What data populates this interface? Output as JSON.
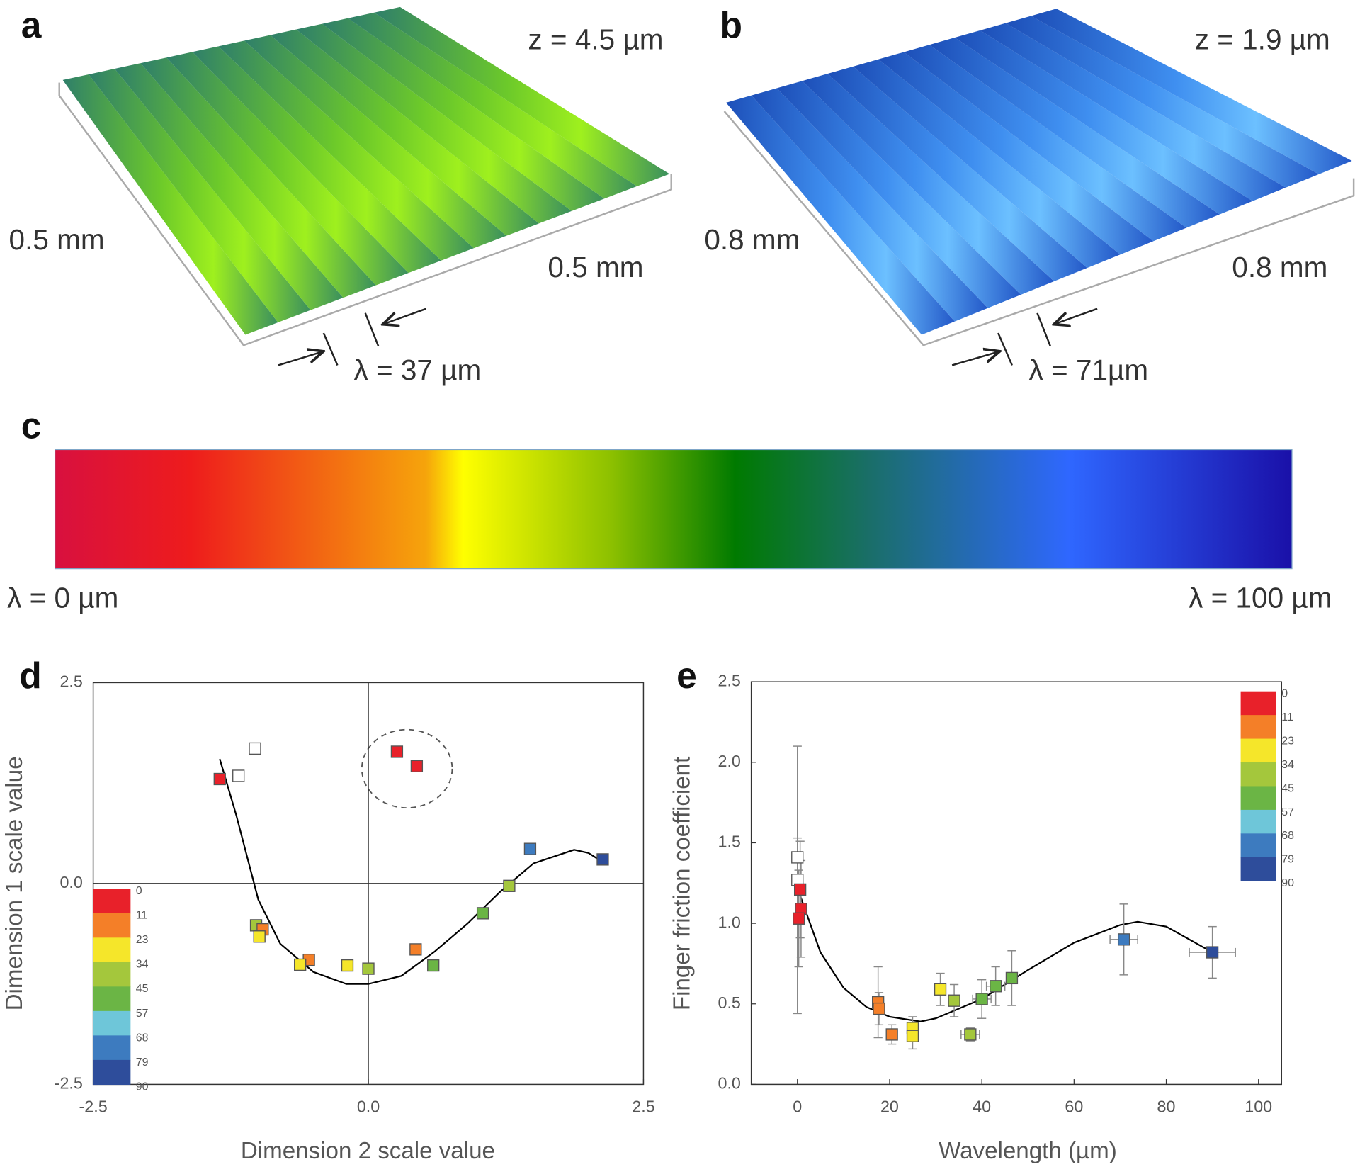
{
  "panels": {
    "a": {
      "label": "a",
      "z": "z = 4.5 µm",
      "width": "0.5 mm",
      "length": "0.5 mm",
      "wavelength": "λ = 37 µm"
    },
    "b": {
      "label": "b",
      "z": "z = 1.9 µm",
      "width": "0.8 mm",
      "length": "0.8 mm",
      "wavelength": "λ =  71µm"
    },
    "c": {
      "label": "c",
      "min": "λ = 0 µm",
      "max": "λ = 100 µm"
    }
  },
  "chart_data": [
    {
      "type": "scatter",
      "panel_label": "d",
      "xlabel": "Dimension 2 scale value",
      "ylabel": "Dimension 1 scale value",
      "xlim": [
        -2.5,
        2.5
      ],
      "ylim": [
        -2.5,
        2.5
      ],
      "xticks": [
        -2.5,
        {
          "value": 0,
          "label": "0.0"
        },
        2.5
      ],
      "yticks": [
        -2.5,
        {
          "value": 0,
          "label": "0.0"
        },
        2.5
      ],
      "zero_lines": true,
      "points": {
        "x": [
          -1.35,
          -1.18,
          -1.03,
          0.26,
          0.44,
          1.47,
          2.13,
          1.28,
          1.04,
          0.43,
          0.59,
          0.0,
          -0.19,
          -0.54,
          -0.62,
          -1.02,
          -0.96,
          -0.99
        ],
        "y": [
          1.3,
          1.34,
          1.68,
          1.64,
          1.46,
          0.43,
          0.3,
          -0.03,
          -0.37,
          -0.82,
          -1.02,
          -1.06,
          -1.02,
          -0.95,
          -1.01,
          -0.52,
          -0.57,
          -0.66
        ],
        "colors": [
          "#e8212a",
          "#ffffff",
          "#ffffff",
          "#e8212a",
          "#e8212a",
          "#3d7bbf",
          "#2e4d9b",
          "#a4c73c",
          "#6bb545",
          "#f47f28",
          "#6bb545",
          "#a4c73c",
          "#f5e62a",
          "#f47f28",
          "#f5e62a",
          "#a4c73c",
          "#f47f28",
          "#f5e62a"
        ]
      },
      "fit": {
        "color": "#000000",
        "x": [
          -1.35,
          -1.2,
          -1.0,
          -0.8,
          -0.5,
          -0.2,
          0.0,
          0.3,
          0.6,
          0.9,
          1.2,
          1.5,
          1.87,
          2.0,
          2.15
        ],
        "y": [
          1.55,
          0.85,
          -0.2,
          -0.75,
          -1.1,
          -1.25,
          -1.25,
          -1.15,
          -0.85,
          -0.5,
          -0.1,
          0.25,
          0.42,
          0.38,
          0.25
        ]
      },
      "colorbar": {
        "labels": [
          0,
          11,
          23,
          34,
          45,
          57,
          68,
          79,
          90
        ],
        "colors": [
          "#e8212a",
          "#f47f28",
          "#f5e62a",
          "#a4c73c",
          "#6bb545",
          "#6ec6d9",
          "#3d7bbf",
          "#2e4d9b"
        ]
      }
    },
    {
      "type": "scatter",
      "panel_label": "e",
      "xlabel": "Wavelength (µm)",
      "ylabel": "Finger friction coefficient",
      "xlim": [
        -10,
        105
      ],
      "ylim": [
        0,
        2.5
      ],
      "xticks": [
        0,
        20,
        40,
        60,
        80,
        100
      ],
      "yticks": [
        {
          "value": 0,
          "label": "0.0"
        },
        0.5,
        {
          "value": 1,
          "label": "1.0"
        },
        1.5,
        {
          "value": 2,
          "label": "2.0"
        },
        2.5
      ],
      "zero_lines": false,
      "points": {
        "x": [
          0,
          0,
          0.6,
          0.8,
          0.3,
          17.5,
          17.7,
          20.5,
          25,
          25,
          31,
          34,
          37.5,
          40,
          43,
          46.5,
          70.8,
          90
        ],
        "y": [
          1.41,
          1.27,
          1.21,
          1.09,
          1.03,
          0.51,
          0.47,
          0.31,
          0.35,
          0.3,
          0.59,
          0.52,
          0.31,
          0.53,
          0.61,
          0.66,
          0.9,
          0.82
        ],
        "yerr": [
          0.12,
          0.83,
          0.3,
          0.3,
          0.3,
          0.22,
          0.1,
          0.06,
          0.07,
          0.08,
          0.1,
          0.1,
          0.04,
          0.12,
          0.12,
          0.17,
          0.22,
          0.16
        ],
        "xerr": [
          null,
          null,
          null,
          null,
          null,
          null,
          null,
          null,
          null,
          null,
          null,
          null,
          2,
          2,
          2,
          null,
          3,
          5
        ],
        "colors": [
          "#ffffff",
          "#ffffff",
          "#e8212a",
          "#e8212a",
          "#e8212a",
          "#f47f28",
          "#f47f28",
          "#f47f28",
          "#f5e62a",
          "#f5e62a",
          "#f5e62a",
          "#a4c73c",
          "#a4c73c",
          "#6bb545",
          "#6bb545",
          "#6bb545",
          "#3d7bbf",
          "#2e4d9b"
        ]
      },
      "fit": {
        "color": "#000000",
        "x": [
          0,
          5,
          10,
          15,
          20,
          26.7,
          30,
          40,
          50,
          60,
          70,
          73.8,
          80,
          85,
          90
        ],
        "y": [
          1.22,
          0.82,
          0.6,
          0.48,
          0.42,
          0.39,
          0.41,
          0.53,
          0.71,
          0.88,
          0.99,
          1.01,
          0.98,
          0.9,
          0.82
        ]
      },
      "colorbar": {
        "labels": [
          0,
          11,
          23,
          34,
          45,
          57,
          68,
          79,
          90
        ],
        "colors": [
          "#e8212a",
          "#f47f28",
          "#f5e62a",
          "#a4c73c",
          "#6bb545",
          "#6ec6d9",
          "#3d7bbf",
          "#2e4d9b"
        ]
      }
    }
  ]
}
